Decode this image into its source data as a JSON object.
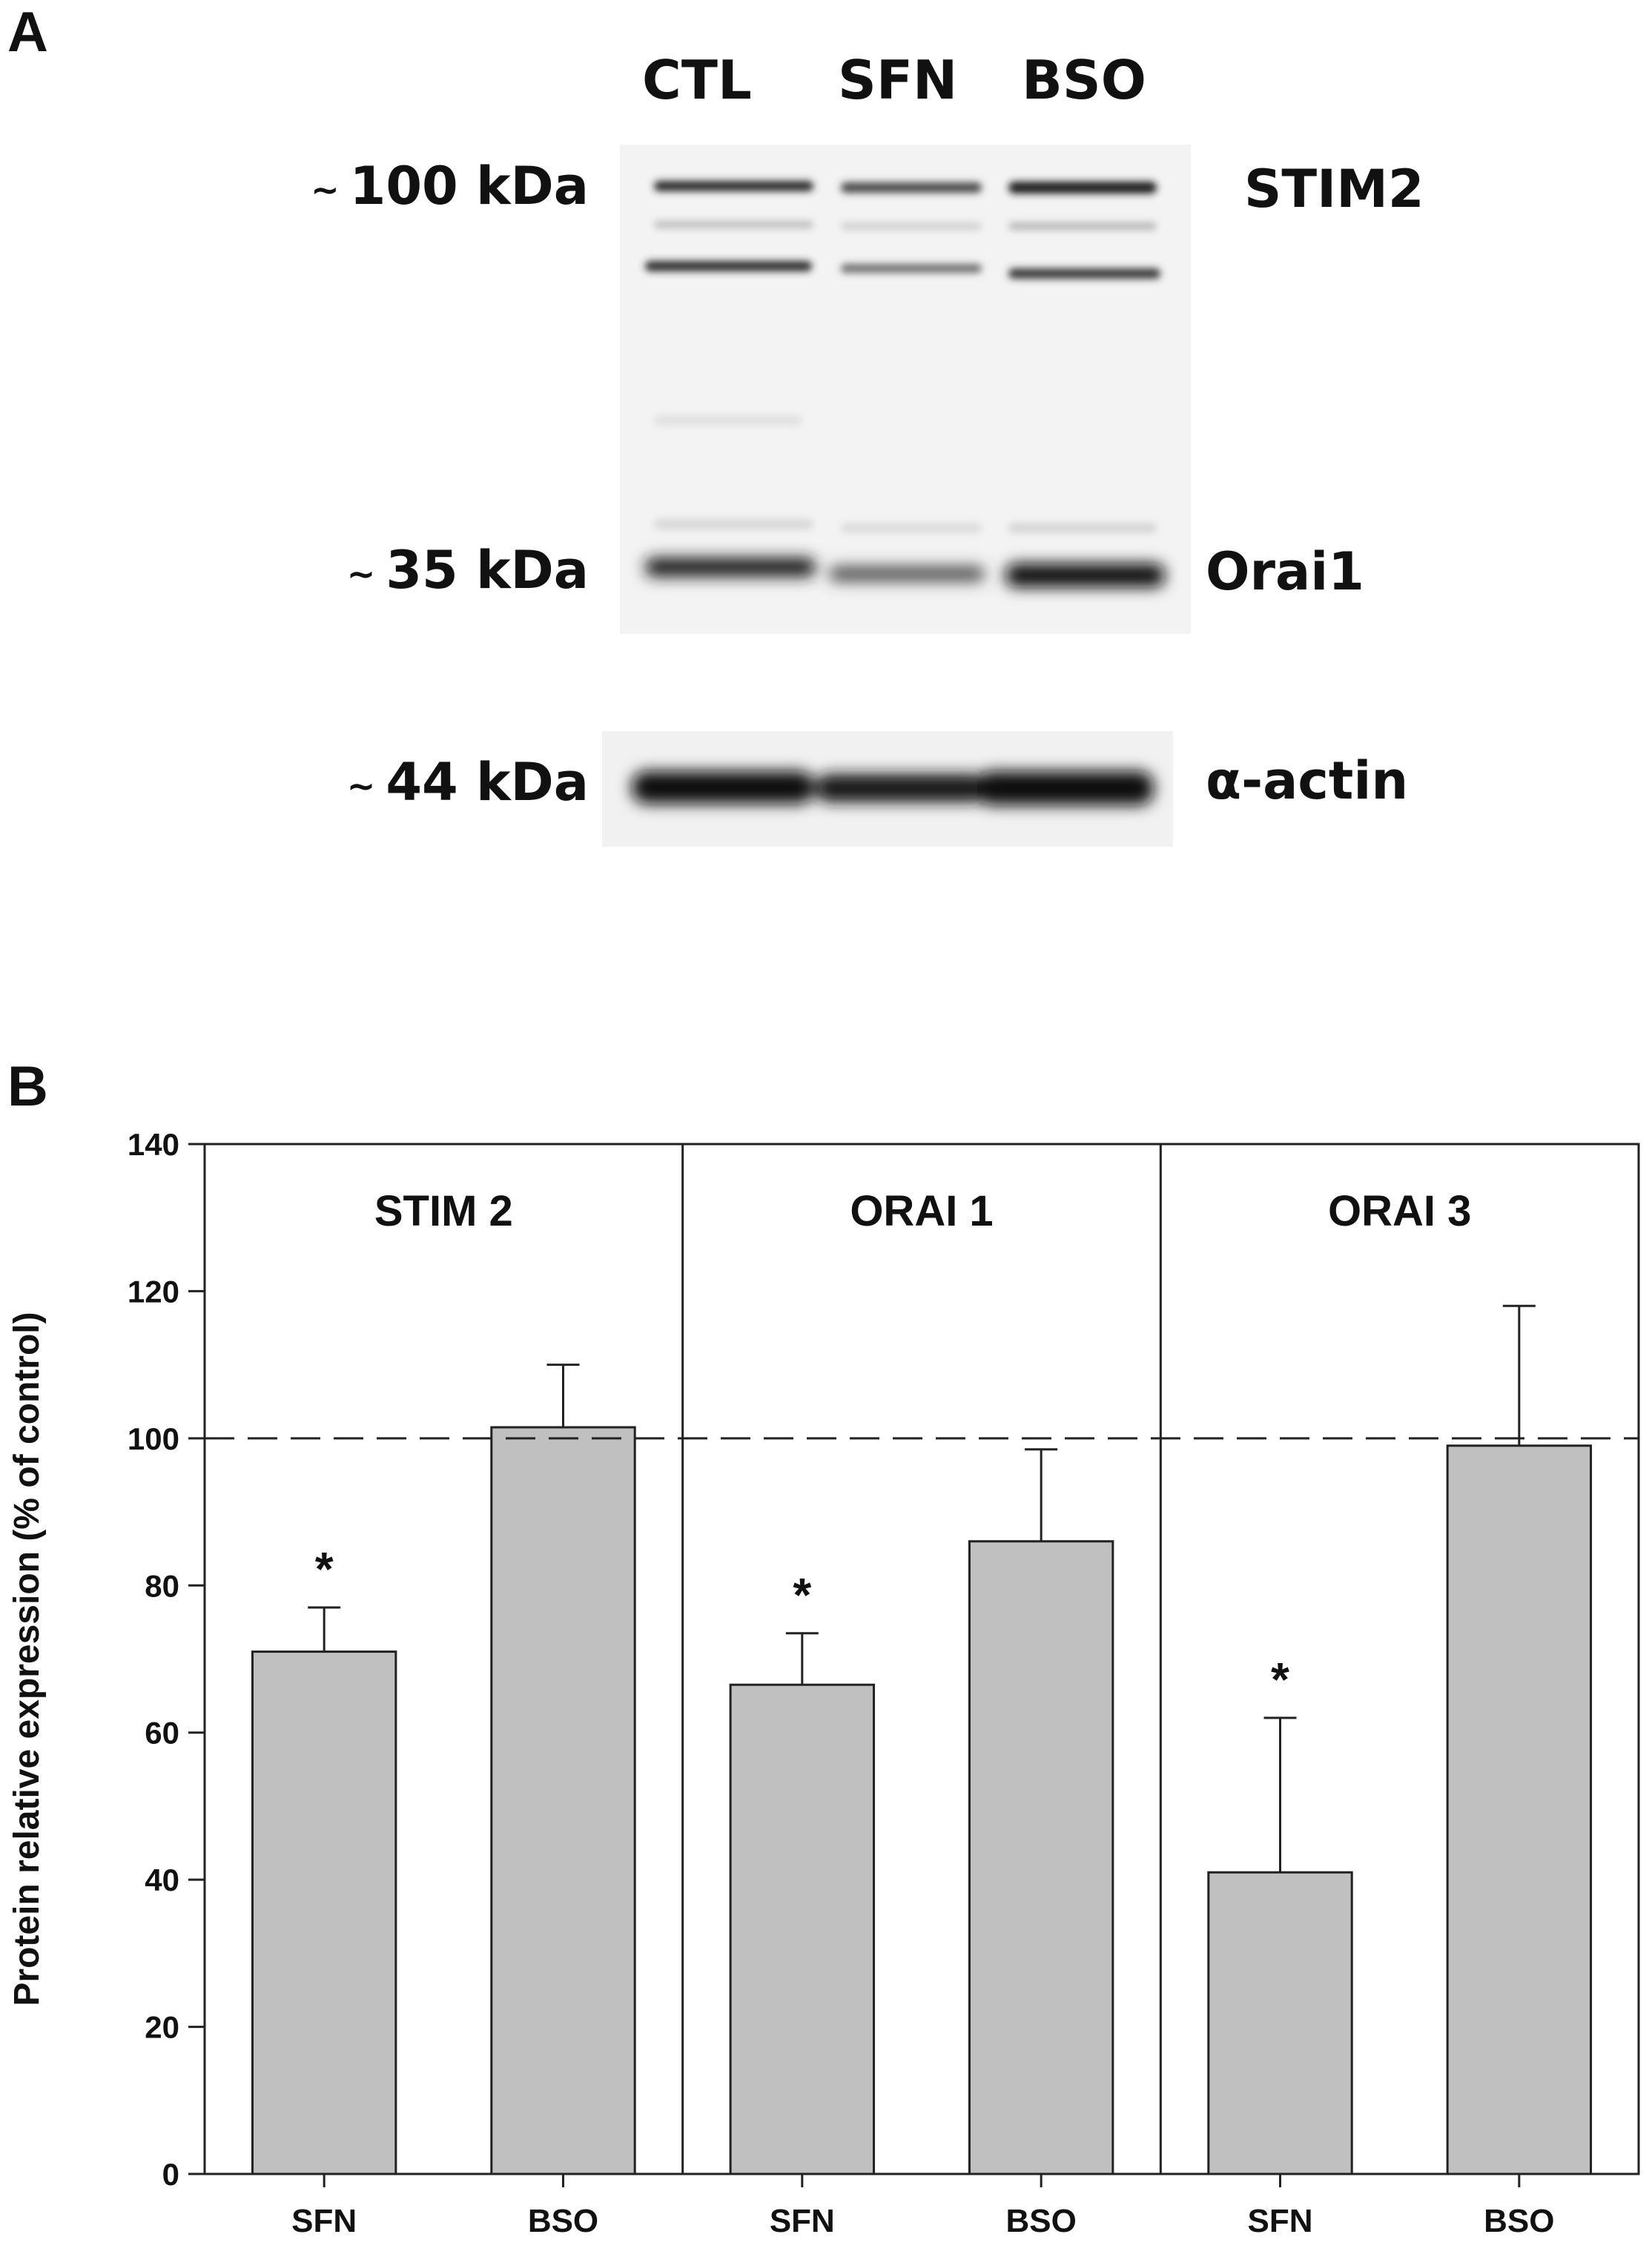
{
  "panel_a": {
    "letter": "A",
    "lanes": [
      "CTL",
      "SFN",
      "BSO"
    ],
    "markers": [
      {
        "tilde": "~",
        "size": "100 kDa",
        "protein": "STIM2"
      },
      {
        "tilde": "~",
        "size": "35 kDa",
        "protein": "Orai1"
      },
      {
        "tilde": "~",
        "size": "44 kDa",
        "protein": "α-actin"
      }
    ]
  },
  "panel_b": {
    "letter": "B"
  },
  "chart_data": {
    "type": "bar",
    "ylabel": "Protein relative expression (% of control)",
    "ylim": [
      0,
      140
    ],
    "yticks": [
      0,
      20,
      40,
      60,
      80,
      100,
      120,
      140
    ],
    "reference_line": 100,
    "bar_color": "#c0c0c0",
    "groups": [
      {
        "name": "STIM 2",
        "categories": [
          "SFN",
          "BSO"
        ],
        "values": [
          71,
          101.5
        ],
        "errors": [
          6,
          8.5
        ],
        "significant": [
          true,
          false
        ]
      },
      {
        "name": "ORAI 1",
        "categories": [
          "SFN",
          "BSO"
        ],
        "values": [
          66.5,
          86
        ],
        "errors": [
          7,
          12.5
        ],
        "significant": [
          true,
          false
        ]
      },
      {
        "name": "ORAI 3",
        "categories": [
          "SFN",
          "BSO"
        ],
        "values": [
          41,
          99
        ],
        "errors": [
          21,
          19
        ],
        "significant": [
          true,
          false
        ]
      }
    ],
    "significance_marker": "*"
  }
}
